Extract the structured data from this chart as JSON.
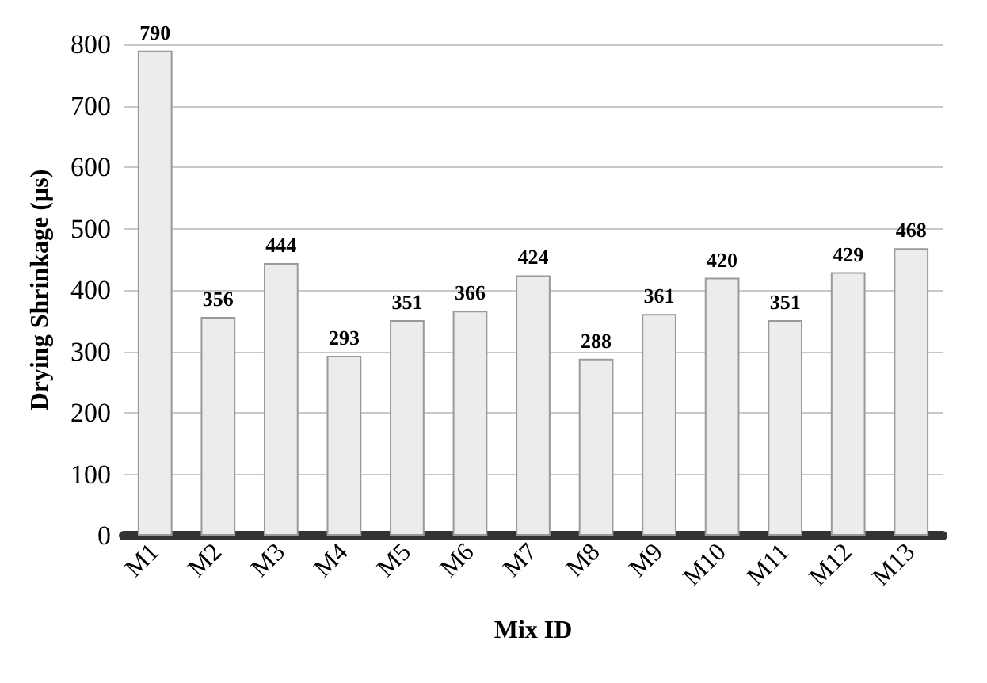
{
  "chart_data": {
    "type": "bar",
    "xlabel": "Mix ID",
    "ylabel": "Drying Shrinkage (µs)",
    "categories": [
      "M1",
      "M2",
      "M3",
      "M4",
      "M5",
      "M6",
      "M7",
      "M8",
      "M9",
      "M10",
      "M11",
      "M12",
      "M13"
    ],
    "values": [
      790,
      356,
      444,
      293,
      351,
      366,
      424,
      288,
      361,
      420,
      351,
      429,
      468
    ],
    "color": "#ececec",
    "ylim": [
      0,
      800
    ],
    "yticks": [
      0,
      100,
      200,
      300,
      400,
      500,
      600,
      700,
      800
    ],
    "grid": "y",
    "data_labels": true
  }
}
